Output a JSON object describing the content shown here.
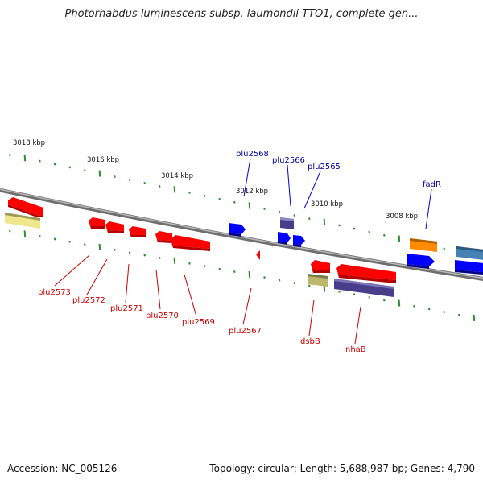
{
  "title": "Photorhabdus luminescens subsp. laumondii TTO1, complete gen...",
  "footer": {
    "accession": "Accession: NC_005126",
    "summary": "Topology: circular; Length: 5,688,987 bp; Genes: 4,790"
  },
  "scale_labels": [
    "3018 kbp",
    "3016 kbp",
    "3014 kbp",
    "3012 kbp",
    "3010 kbp",
    "3008 kbp"
  ],
  "gene_labels": {
    "forward": [
      "plu2568",
      "plu2566",
      "plu2565",
      "fadR"
    ],
    "reverse": [
      "plu2573",
      "plu2572",
      "plu2571",
      "plu2570",
      "plu2569",
      "plu2567",
      "dsbB",
      "nhaB"
    ]
  },
  "colors": {
    "forward_gene": "#0000ff",
    "reverse_gene": "#ff0000",
    "forward_label": "#000099",
    "reverse_label": "#cc0000",
    "backbone": "#808080",
    "ticks": "#2e8b2e"
  }
}
